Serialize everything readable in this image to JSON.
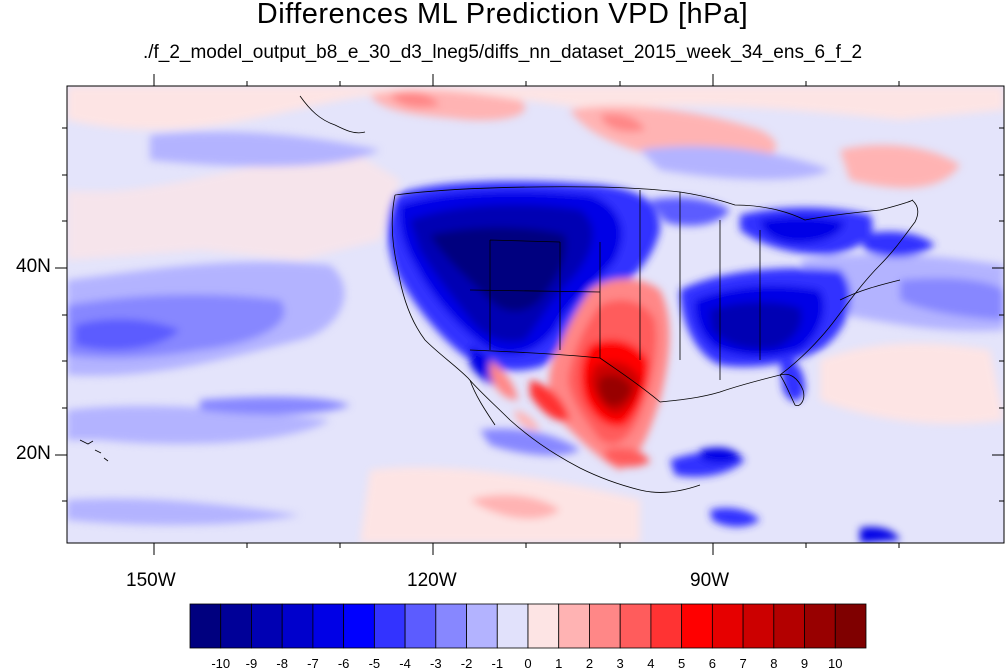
{
  "title": "Differences ML Prediction VPD [hPa]",
  "subtitle": "./f_2_model_output_b8_e_30_d3_lneg5/diffs_nn_dataset_2015_week_34_ens_6_f_2",
  "axes": {
    "lat_labels": [
      "40N",
      "20N"
    ],
    "lon_labels": [
      "150W",
      "120W",
      "90W"
    ]
  },
  "colorbar": {
    "ticks": [
      "-10",
      "-9",
      "-8",
      "-7",
      "-6",
      "-5",
      "-4",
      "-3",
      "-2",
      "-1",
      "0",
      "1",
      "2",
      "3",
      "4",
      "5",
      "6",
      "7",
      "8",
      "9",
      "10"
    ],
    "colors": [
      "#00007f",
      "#000098",
      "#0000b3",
      "#0000cc",
      "#0000e6",
      "#0000ff",
      "#3333ff",
      "#5c5cff",
      "#8787ff",
      "#b3b3ff",
      "#e1e1fb",
      "#fde4e4",
      "#ffb3b3",
      "#ff8787",
      "#ff5c5c",
      "#ff3333",
      "#ff0000",
      "#e60000",
      "#cc0000",
      "#b30000",
      "#980000",
      "#7f0000"
    ]
  }
}
